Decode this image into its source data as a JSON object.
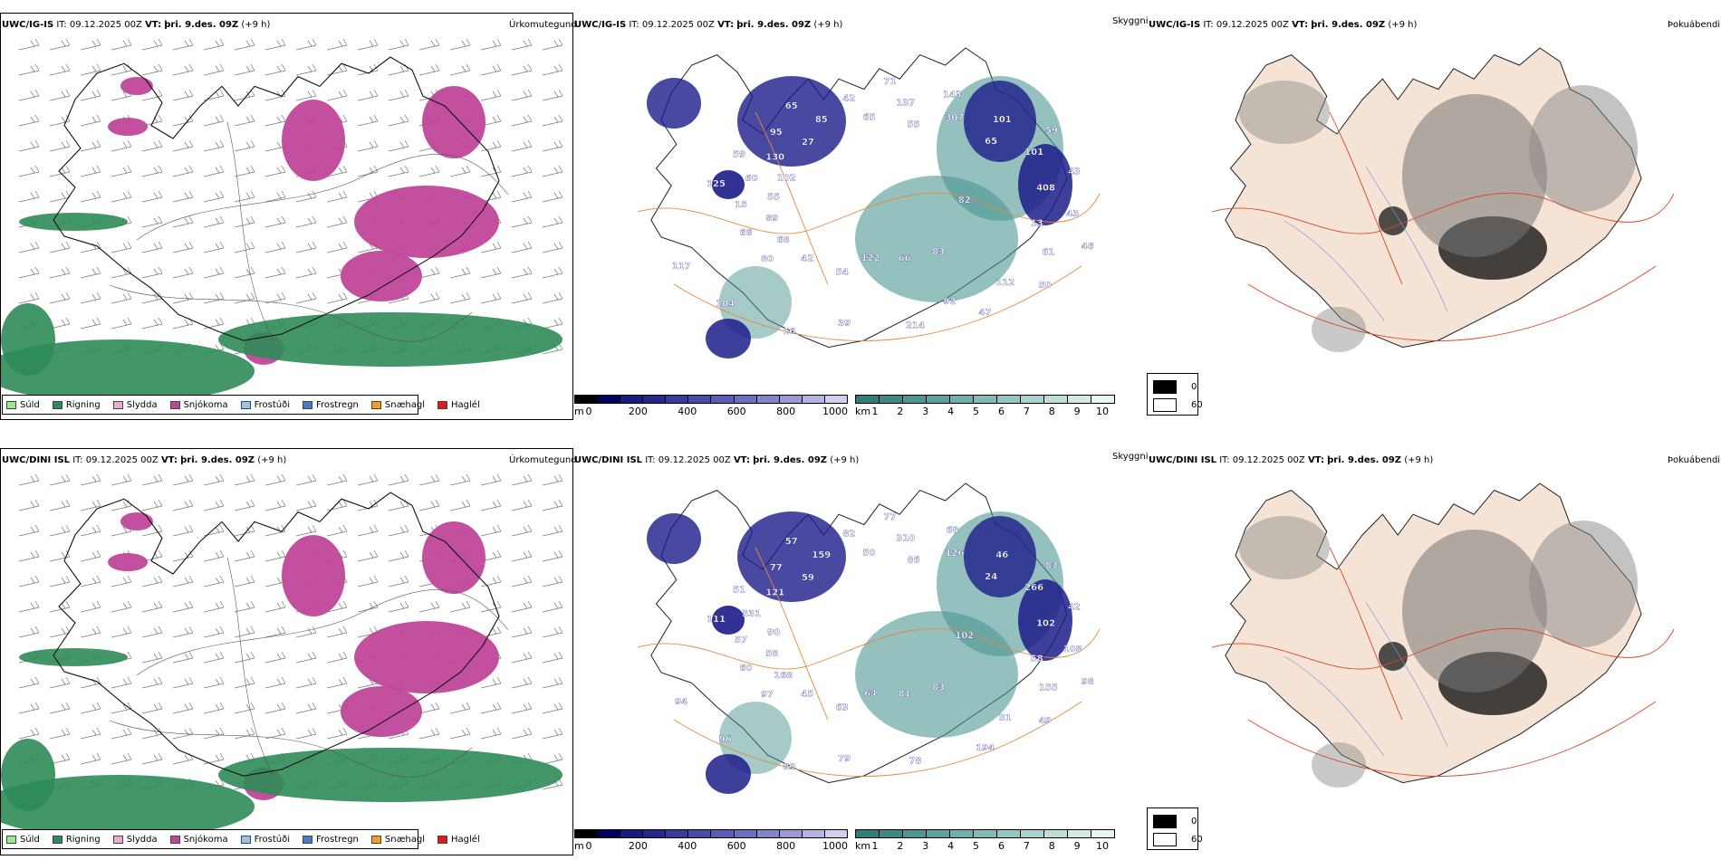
{
  "rows": [
    {
      "model": "UWC/IG-IS",
      "it_label": "IT:",
      "it_value": "09.12.2025 00Z",
      "vt_label": "VT:",
      "vt_value": "þri. 9.des. 09Z",
      "lead": "(+9 h)",
      "visibility_labels": [
        "82",
        "80",
        "71",
        "83",
        "125",
        "59",
        "54",
        "65",
        "46",
        "66",
        "143",
        "66",
        "59",
        "43",
        "42",
        "42",
        "50",
        "15",
        "101",
        "122",
        "95",
        "43",
        "68",
        "137",
        "47",
        "60",
        "101",
        "16",
        "85",
        "61",
        "89",
        "307",
        "214",
        "130",
        "408",
        "104",
        "65",
        "112",
        "55",
        "65",
        "39",
        "27",
        "13",
        "117",
        "55",
        "92",
        "102"
      ]
    },
    {
      "model": "UWC/DINI ISL",
      "it_label": "IT:",
      "it_value": "09.12.2025 00Z",
      "vt_label": "VT:",
      "vt_value": "þri. 9.des. 09Z",
      "lead": "(+9 h)",
      "visibility_labels": [
        "102",
        "97",
        "77",
        "83",
        "111",
        "83",
        "63",
        "57",
        "98",
        "60",
        "68",
        "81",
        "51",
        "42",
        "45",
        "82",
        "49",
        "57",
        "46",
        "64",
        "77",
        "108",
        "168",
        "310",
        "194",
        "531",
        "266",
        "89",
        "159",
        "155",
        "58",
        "126",
        "78",
        "121",
        "102",
        "96",
        "50",
        "51",
        "90",
        "24",
        "79",
        "59",
        "58",
        "94",
        "86"
      ]
    }
  ],
  "panel_titles": {
    "precip": "Úrkomutegund",
    "visibility": "Skyggni",
    "fog": "Þokuábendi"
  },
  "precip_legend": [
    {
      "label": "Súld",
      "color": "#90ee90"
    },
    {
      "label": "Rigning",
      "color": "#2e8b57"
    },
    {
      "label": "Slydda",
      "color": "#f2a6d6"
    },
    {
      "label": "Snjókoma",
      "color": "#c0479a"
    },
    {
      "label": "Frostúði",
      "color": "#9cc3ee"
    },
    {
      "label": "Frostregn",
      "color": "#3f7fc6"
    },
    {
      "label": "Snæhagl",
      "color": "#f0a020"
    },
    {
      "label": "Haglél",
      "color": "#e01818"
    }
  ],
  "cloud_base_scale": {
    "unit": "m",
    "ticks": [
      "0",
      "200",
      "400",
      "600",
      "800",
      "1000"
    ],
    "colors": [
      "#000000",
      "#000060",
      "#1a1a80",
      "#26268e",
      "#3a3a9c",
      "#4a4aa8",
      "#5c5cb4",
      "#6e6ec0",
      "#8484cc",
      "#9a9ad6",
      "#b4b4e2",
      "#d0d0ee"
    ]
  },
  "visibility_scale": {
    "unit": "km",
    "ticks": [
      "1",
      "2",
      "3",
      "4",
      "5",
      "6",
      "7",
      "8",
      "9",
      "10"
    ],
    "colors": [
      "#2f7d7a",
      "#3c8a86",
      "#4d9692",
      "#5ea29e",
      "#70aeaa",
      "#83bab6",
      "#96c6c2",
      "#aad2ce",
      "#bededa",
      "#d2eae6",
      "#e8f5f3"
    ]
  },
  "fog_key": {
    "entries": [
      {
        "label": "0",
        "color": "#000000"
      },
      {
        "label": "60",
        "color": "#ffffff"
      }
    ]
  },
  "colors": {
    "land_fill_fog": "#f5e3d6",
    "roads_orange": "#e8883a",
    "roads_red": "#d9462a",
    "rivers_blue": "#7a9ae8",
    "snow": "#c0479a",
    "rain": "#2e8b57",
    "cloud_low": "#1c1c8a",
    "vis_teal": "#4d9692"
  }
}
